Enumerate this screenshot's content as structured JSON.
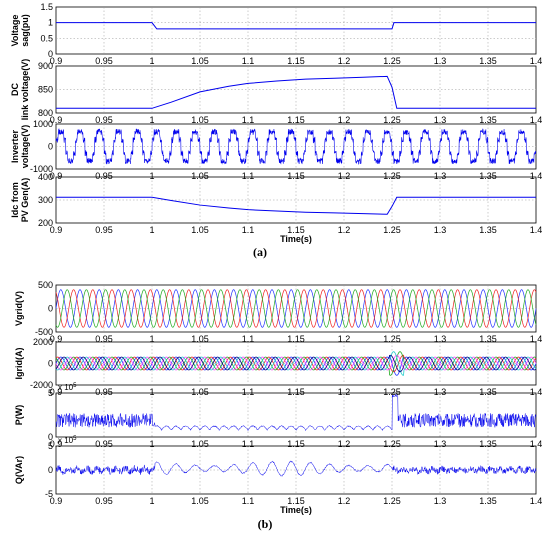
{
  "figure": {
    "caption_a": "(a)",
    "caption_b": "(b)"
  },
  "colors": {
    "trace": "#0000ee",
    "phase_a": "#2233ff",
    "phase_b": "#ee2222",
    "phase_c": "#22aa22",
    "phase_d": "#ff44ff",
    "phase_e": "#22cccc"
  },
  "chart_data": [
    {
      "type": "line",
      "panel": "a1",
      "ylabel": "Voltage sag(pu)",
      "xlim": [
        0.9,
        1.4
      ],
      "ylim": [
        0,
        1.5
      ],
      "xticks": [
        "0.9",
        "0.95",
        "1",
        "1.05",
        "1.1",
        "1.15",
        "1.2",
        "1.25",
        "1.3",
        "1.35",
        "1.4"
      ],
      "yticks": [
        "0",
        "0.5",
        "1",
        "1.5"
      ],
      "series": [
        {
          "x": [
            0.9,
            1.0,
            1.005,
            1.25,
            1.252,
            1.4
          ],
          "y": [
            1,
            1,
            0.8,
            0.8,
            1,
            1
          ]
        }
      ]
    },
    {
      "type": "line",
      "panel": "a2",
      "ylabel": "DC link voltage(V)",
      "xlim": [
        0.9,
        1.4
      ],
      "ylim": [
        800,
        900
      ],
      "yticks": [
        "800",
        "850",
        "900"
      ],
      "series": [
        {
          "x": [
            0.9,
            1.0,
            1.02,
            1.05,
            1.08,
            1.1,
            1.13,
            1.16,
            1.19,
            1.22,
            1.245,
            1.25,
            1.255,
            1.4
          ],
          "y": [
            810,
            810,
            823,
            845,
            857,
            863,
            868,
            872,
            874,
            876,
            878,
            855,
            810,
            810
          ]
        }
      ]
    },
    {
      "type": "line",
      "panel": "a3",
      "ylabel": "Inverter voltage(V)",
      "xlim": [
        0.9,
        1.4
      ],
      "ylim": [
        -1000,
        1000
      ],
      "yticks": [
        "-1000",
        "0",
        "1000"
      ],
      "series": [
        {
          "name": "",
          "waveform": "square",
          "amplitude": 650,
          "frequency_hz": 50
        }
      ]
    },
    {
      "type": "line",
      "panel": "a4",
      "ylabel": "Idc from PV Gen(A)",
      "xlim": [
        0.9,
        1.4
      ],
      "ylim": [
        200,
        400
      ],
      "yticks": [
        "200",
        "300",
        "400"
      ],
      "xlabel": "Time(s)",
      "series": [
        {
          "x": [
            0.9,
            1.0,
            1.02,
            1.05,
            1.08,
            1.1,
            1.13,
            1.16,
            1.19,
            1.22,
            1.245,
            1.25,
            1.255,
            1.4
          ],
          "y": [
            312,
            312,
            298,
            278,
            265,
            258,
            252,
            247,
            244,
            241,
            238,
            272,
            312,
            312
          ]
        }
      ]
    },
    {
      "type": "line",
      "panel": "b1",
      "ylabel": "Vgrid(V)",
      "xlim": [
        0.9,
        1.4
      ],
      "ylim": [
        -500,
        500
      ],
      "xticks": [
        "0.9",
        "0.95",
        "1",
        "1.05",
        "1.1",
        "1.15",
        "1.2",
        "1.25",
        "1.3",
        "1.35",
        "1.4"
      ],
      "yticks": [
        "-500",
        "0",
        "500"
      ],
      "series": [
        {
          "waveform": "three-phase sine",
          "amplitude": 400,
          "frequency_hz": 50
        }
      ]
    },
    {
      "type": "line",
      "panel": "b2",
      "ylabel": "Igrid(A)",
      "xlim": [
        0.9,
        1.4
      ],
      "ylim": [
        -2000,
        2000
      ],
      "yticks": [
        "-2000",
        "0",
        "2000"
      ],
      "series": [
        {
          "waveform": "multi-phase sine",
          "amplitude": 600,
          "frequency_hz": 50,
          "transient_at": 1.25,
          "transient_peak": 1100
        }
      ]
    },
    {
      "type": "line",
      "panel": "b3",
      "ylabel": "P(W)",
      "xlim": [
        0.9,
        1.4
      ],
      "ylim": [
        0,
        5
      ],
      "yticks": [
        "0",
        "5"
      ],
      "scale_exponent": "x 10",
      "scale_power": "5",
      "series": [
        {
          "x": [
            0.9,
            1.0,
            1.005,
            1.25,
            1.255,
            1.26,
            1.4
          ],
          "y": [
            1.9,
            1.9,
            0.8,
            0.8,
            4.7,
            1.9,
            1.9
          ]
        }
      ]
    },
    {
      "type": "line",
      "panel": "b4",
      "ylabel": "Q(VAr)",
      "xlim": [
        0.9,
        1.4
      ],
      "ylim": [
        -5,
        5
      ],
      "yticks": [
        "-5",
        "0",
        "5"
      ],
      "xlabel": "Time(s)",
      "scale_exponent": "x 10",
      "scale_power": "5",
      "series": [
        {
          "x": [
            0.9,
            1.0,
            1.005,
            1.25,
            1.255,
            1.4
          ],
          "y": [
            0,
            0,
            0.5,
            0.5,
            0,
            0
          ]
        }
      ]
    }
  ]
}
